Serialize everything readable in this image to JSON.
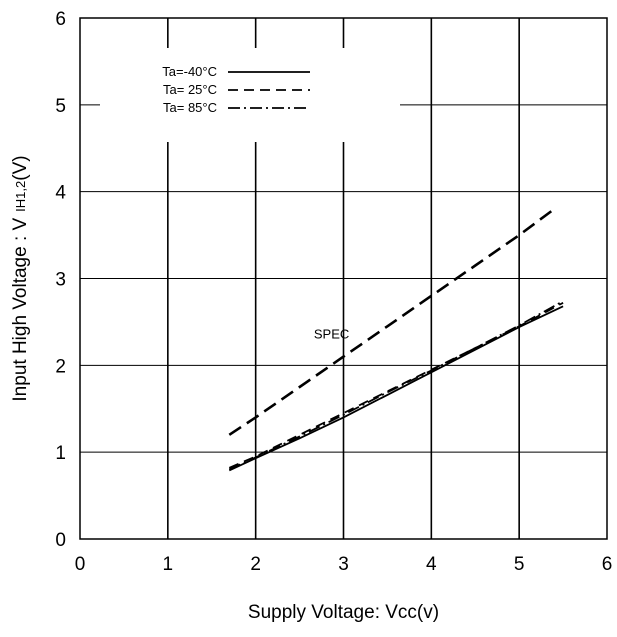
{
  "chart_data": {
    "type": "line",
    "xlabel": "Supply Voltage: Vcc(v)",
    "ylabel": "Input High Voltage : V",
    "ylabel_sub": "IH1,2",
    "ylabel_unit": "(V)",
    "xlim": [
      0,
      6
    ],
    "ylim": [
      0,
      6
    ],
    "xticks": [
      0,
      1,
      2,
      3,
      4,
      5,
      6
    ],
    "yticks": [
      0,
      1,
      2,
      3,
      4,
      5,
      6
    ],
    "grid": true,
    "legend_position": "top-left",
    "series": [
      {
        "name": "Ta=-40°C",
        "dash": "solid",
        "x": [
          1.7,
          2.0,
          2.5,
          3.0,
          3.5,
          4.0,
          4.5,
          5.0,
          5.5
        ],
        "y": [
          0.79,
          0.93,
          1.16,
          1.4,
          1.66,
          1.92,
          2.18,
          2.44,
          2.68
        ]
      },
      {
        "name": "Ta= 25°C",
        "dash": "dashed",
        "x": [
          1.7,
          2.0,
          2.5,
          3.0,
          3.5,
          4.0,
          4.5,
          5.0,
          5.5
        ],
        "y": [
          0.82,
          0.95,
          1.2,
          1.45,
          1.7,
          1.95,
          2.2,
          2.45,
          2.72
        ]
      },
      {
        "name": "Ta= 85°C",
        "dash": "dashdot",
        "x": [
          1.7,
          2.0,
          2.5,
          3.0,
          3.5,
          4.0,
          4.5,
          5.0,
          5.5
        ],
        "y": [
          0.8,
          0.94,
          1.18,
          1.43,
          1.69,
          1.94,
          2.2,
          2.46,
          2.74
        ]
      },
      {
        "name": "SPEC",
        "dash": "longdash",
        "x": [
          1.7,
          2.0,
          2.5,
          3.0,
          3.5,
          4.0,
          4.5,
          5.0,
          5.4
        ],
        "y": [
          1.2,
          1.4,
          1.75,
          2.1,
          2.45,
          2.8,
          3.15,
          3.5,
          3.8
        ]
      }
    ],
    "annotations": [
      {
        "text": "SPEC",
        "x": 2.5,
        "y": 2.4
      }
    ]
  }
}
